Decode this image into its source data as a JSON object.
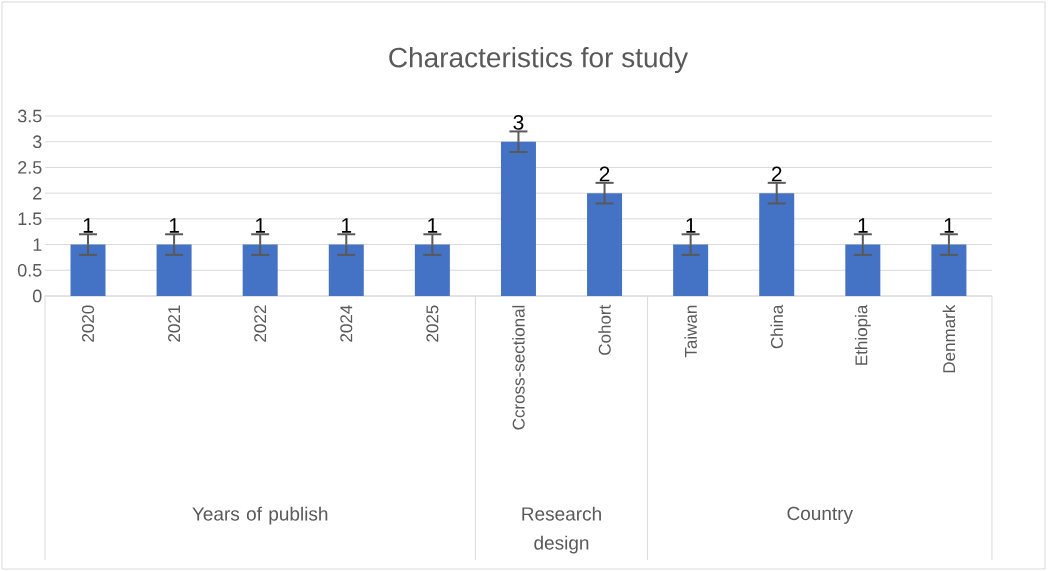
{
  "chart_data": {
    "type": "bar",
    "title": "Characteristics for study",
    "categories": [
      "2020",
      "2021",
      "2022",
      "2024",
      "2025",
      "Ccross-sectional",
      "Cohort",
      "Taiwan",
      "China",
      "Ethiopia",
      "Denmark"
    ],
    "values": [
      1,
      1,
      1,
      1,
      1,
      3,
      2,
      1,
      2,
      1,
      1
    ],
    "errors": [
      0.2,
      0.2,
      0.2,
      0.2,
      0.2,
      0.2,
      0.2,
      0.2,
      0.2,
      0.2,
      0.2
    ],
    "color": "#4472c4",
    "ylim": [
      0,
      3.5
    ],
    "yticks": [
      0,
      0.5,
      1,
      1.5,
      2,
      2.5,
      3,
      3.5
    ],
    "grid": "y",
    "data_labels": true,
    "annotations": [
      "Years of publish",
      "Research design",
      "Country"
    ]
  }
}
